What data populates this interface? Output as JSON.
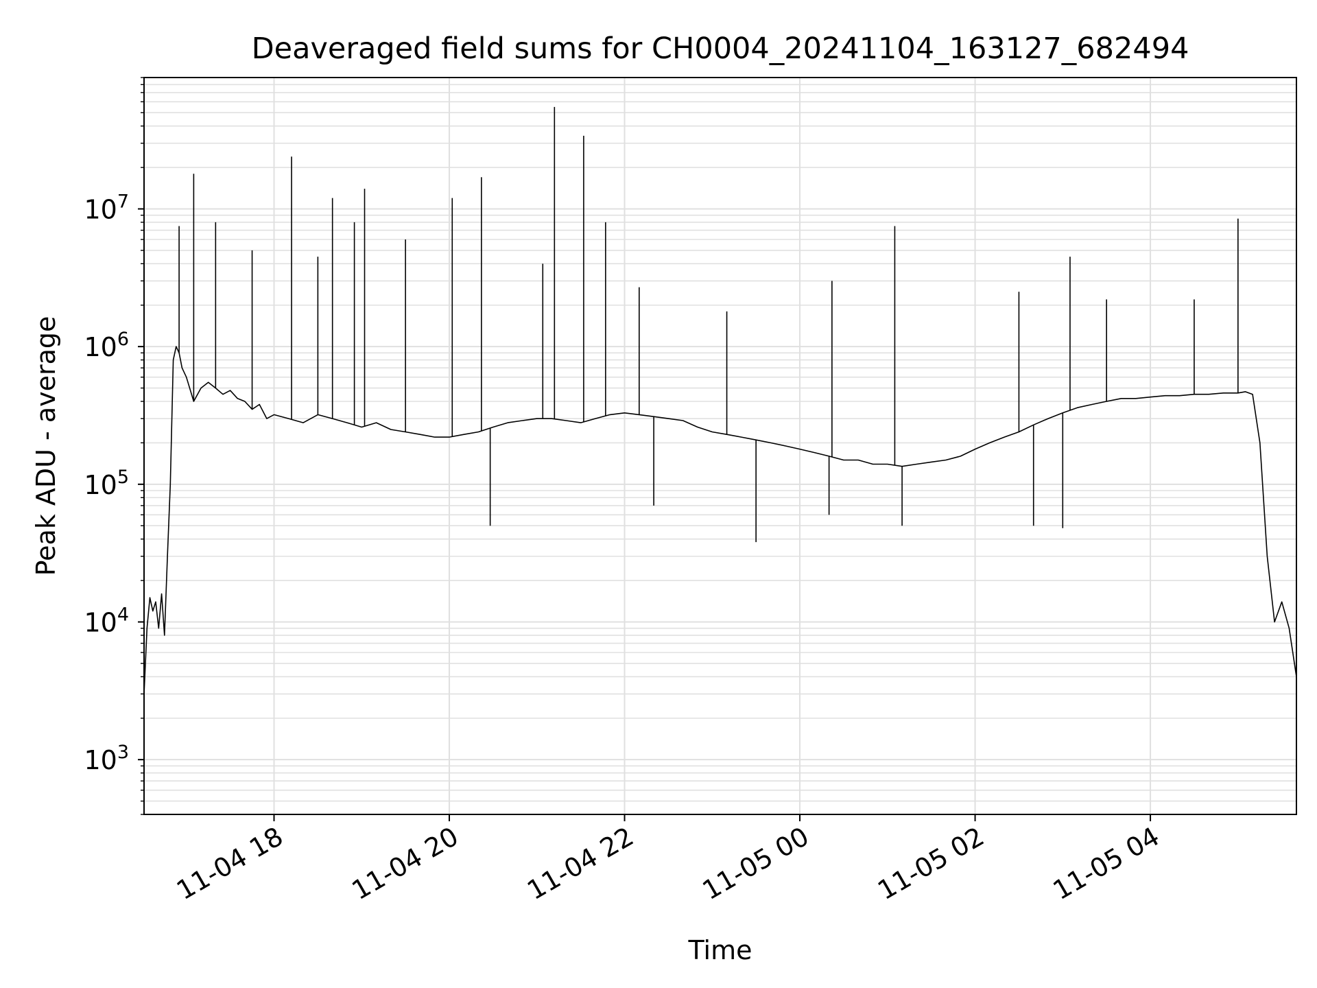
{
  "chart_data": {
    "type": "line",
    "title": "Deaveraged field sums for CH0004_20241104_163127_682494",
    "xlabel": "Time",
    "ylabel": "Peak ADU - average",
    "yscale": "log",
    "ylim": [
      400,
      90000000
    ],
    "xlim": [
      "2024-11-04 16:31",
      "2024-11-05 05:40"
    ],
    "grid": true,
    "line_color": "#000000",
    "grid_color": "#e0e0e0",
    "x_ticks": [
      {
        "value": "2024-11-04 18:00",
        "label": "11-04 18"
      },
      {
        "value": "2024-11-04 20:00",
        "label": "11-04 20"
      },
      {
        "value": "2024-11-04 22:00",
        "label": "11-04 22"
      },
      {
        "value": "2024-11-05 00:00",
        "label": "11-05 00"
      },
      {
        "value": "2024-11-05 02:00",
        "label": "11-05 02"
      },
      {
        "value": "2024-11-05 04:00",
        "label": "11-05 04"
      }
    ],
    "y_ticks": [
      {
        "value": 1000,
        "base": "10",
        "exp": "3"
      },
      {
        "value": 10000,
        "base": "10",
        "exp": "4"
      },
      {
        "value": 100000,
        "base": "10",
        "exp": "5"
      },
      {
        "value": 1000000,
        "base": "10",
        "exp": "6"
      },
      {
        "value": 10000000,
        "base": "10",
        "exp": "7"
      }
    ],
    "series": [
      {
        "x": [
          "2024-11-04 16:31",
          "2024-11-04 16:33",
          "2024-11-04 16:35",
          "2024-11-04 16:37",
          "2024-11-04 16:39",
          "2024-11-04 16:41",
          "2024-11-04 16:43",
          "2024-11-04 16:45",
          "2024-11-04 16:47",
          "2024-11-04 16:49",
          "2024-11-04 16:51",
          "2024-11-04 16:53",
          "2024-11-04 16:55",
          "2024-11-04 16:57",
          "2024-11-04 17:00",
          "2024-11-04 17:05",
          "2024-11-04 17:10",
          "2024-11-04 17:15",
          "2024-11-04 17:20",
          "2024-11-04 17:25",
          "2024-11-04 17:30",
          "2024-11-04 17:35",
          "2024-11-04 17:40",
          "2024-11-04 17:45",
          "2024-11-04 17:50",
          "2024-11-04 17:55",
          "2024-11-04 18:00",
          "2024-11-04 18:10",
          "2024-11-04 18:20",
          "2024-11-04 18:30",
          "2024-11-04 18:40",
          "2024-11-04 18:50",
          "2024-11-04 19:00",
          "2024-11-04 19:10",
          "2024-11-04 19:20",
          "2024-11-04 19:30",
          "2024-11-04 19:40",
          "2024-11-04 19:50",
          "2024-11-04 20:00",
          "2024-11-04 20:10",
          "2024-11-04 20:20",
          "2024-11-04 20:30",
          "2024-11-04 20:40",
          "2024-11-04 20:50",
          "2024-11-04 21:00",
          "2024-11-04 21:10",
          "2024-11-04 21:20",
          "2024-11-04 21:30",
          "2024-11-04 21:40",
          "2024-11-04 21:50",
          "2024-11-04 22:00",
          "2024-11-04 22:10",
          "2024-11-04 22:20",
          "2024-11-04 22:30",
          "2024-11-04 22:40",
          "2024-11-04 22:50",
          "2024-11-04 23:00",
          "2024-11-04 23:10",
          "2024-11-04 23:20",
          "2024-11-04 23:30",
          "2024-11-04 23:40",
          "2024-11-04 23:50",
          "2024-11-05 00:00",
          "2024-11-05 00:10",
          "2024-11-05 00:20",
          "2024-11-05 00:30",
          "2024-11-05 00:40",
          "2024-11-05 00:50",
          "2024-11-05 01:00",
          "2024-11-05 01:10",
          "2024-11-05 01:20",
          "2024-11-05 01:30",
          "2024-11-05 01:40",
          "2024-11-05 01:50",
          "2024-11-05 02:00",
          "2024-11-05 02:10",
          "2024-11-05 02:20",
          "2024-11-05 02:30",
          "2024-11-05 02:40",
          "2024-11-05 02:50",
          "2024-11-05 03:00",
          "2024-11-05 03:10",
          "2024-11-05 03:20",
          "2024-11-05 03:30",
          "2024-11-05 03:40",
          "2024-11-05 03:50",
          "2024-11-05 04:00",
          "2024-11-05 04:10",
          "2024-11-05 04:20",
          "2024-11-05 04:30",
          "2024-11-05 04:40",
          "2024-11-05 04:50",
          "2024-11-05 05:00",
          "2024-11-05 05:05",
          "2024-11-05 05:10",
          "2024-11-05 05:15",
          "2024-11-05 05:20",
          "2024-11-05 05:25",
          "2024-11-05 05:30",
          "2024-11-05 05:35",
          "2024-11-05 05:40"
        ],
        "y": [
          3000,
          9000,
          15000,
          12000,
          14000,
          9000,
          16000,
          8000,
          30000,
          100000,
          800000,
          1000000,
          900000,
          700000,
          600000,
          400000,
          500000,
          550000,
          500000,
          450000,
          480000,
          420000,
          400000,
          350000,
          380000,
          300000,
          320000,
          300000,
          280000,
          320000,
          300000,
          280000,
          260000,
          280000,
          250000,
          240000,
          230000,
          220000,
          220000,
          230000,
          240000,
          260000,
          280000,
          290000,
          300000,
          300000,
          290000,
          280000,
          300000,
          320000,
          330000,
          320000,
          310000,
          300000,
          290000,
          260000,
          240000,
          230000,
          220000,
          210000,
          200000,
          190000,
          180000,
          170000,
          160000,
          150000,
          150000,
          140000,
          140000,
          135000,
          140000,
          145000,
          150000,
          160000,
          180000,
          200000,
          220000,
          240000,
          270000,
          300000,
          330000,
          360000,
          380000,
          400000,
          420000,
          420000,
          430000,
          440000,
          440000,
          450000,
          450000,
          460000,
          460000,
          470000,
          450000,
          200000,
          30000,
          10000,
          14000,
          9000,
          4000
        ]
      }
    ],
    "spikes": [
      {
        "x": "2024-11-04 16:55",
        "y": 7500000
      },
      {
        "x": "2024-11-04 17:05",
        "y": 18000000
      },
      {
        "x": "2024-11-04 17:20",
        "y": 8000000
      },
      {
        "x": "2024-11-04 17:45",
        "y": 5000000
      },
      {
        "x": "2024-11-04 18:12",
        "y": 24000000
      },
      {
        "x": "2024-11-04 18:30",
        "y": 4500000
      },
      {
        "x": "2024-11-04 18:40",
        "y": 12000000
      },
      {
        "x": "2024-11-04 18:55",
        "y": 8000000
      },
      {
        "x": "2024-11-04 19:02",
        "y": 14000000
      },
      {
        "x": "2024-11-04 19:30",
        "y": 6000000
      },
      {
        "x": "2024-11-04 20:02",
        "y": 12000000
      },
      {
        "x": "2024-11-04 20:22",
        "y": 17000000
      },
      {
        "x": "2024-11-04 21:04",
        "y": 4000000
      },
      {
        "x": "2024-11-04 21:12",
        "y": 55000000
      },
      {
        "x": "2024-11-04 21:32",
        "y": 34000000
      },
      {
        "x": "2024-11-04 21:47",
        "y": 8000000
      },
      {
        "x": "2024-11-04 22:10",
        "y": 2700000
      },
      {
        "x": "2024-11-04 23:10",
        "y": 1800000
      },
      {
        "x": "2024-11-05 00:22",
        "y": 3000000
      },
      {
        "x": "2024-11-05 01:05",
        "y": 7500000
      },
      {
        "x": "2024-11-05 02:30",
        "y": 2500000
      },
      {
        "x": "2024-11-05 03:05",
        "y": 4500000
      },
      {
        "x": "2024-11-05 03:30",
        "y": 2200000
      },
      {
        "x": "2024-11-05 04:30",
        "y": 2200000
      },
      {
        "x": "2024-11-05 05:00",
        "y": 8500000
      }
    ],
    "dips": [
      {
        "x": "2024-11-04 20:28",
        "y": 50000
      },
      {
        "x": "2024-11-04 22:20",
        "y": 70000
      },
      {
        "x": "2024-11-04 23:30",
        "y": 38000
      },
      {
        "x": "2024-11-05 00:20",
        "y": 60000
      },
      {
        "x": "2024-11-05 01:10",
        "y": 50000
      },
      {
        "x": "2024-11-05 02:40",
        "y": 50000
      },
      {
        "x": "2024-11-05 03:00",
        "y": 48000
      }
    ]
  }
}
